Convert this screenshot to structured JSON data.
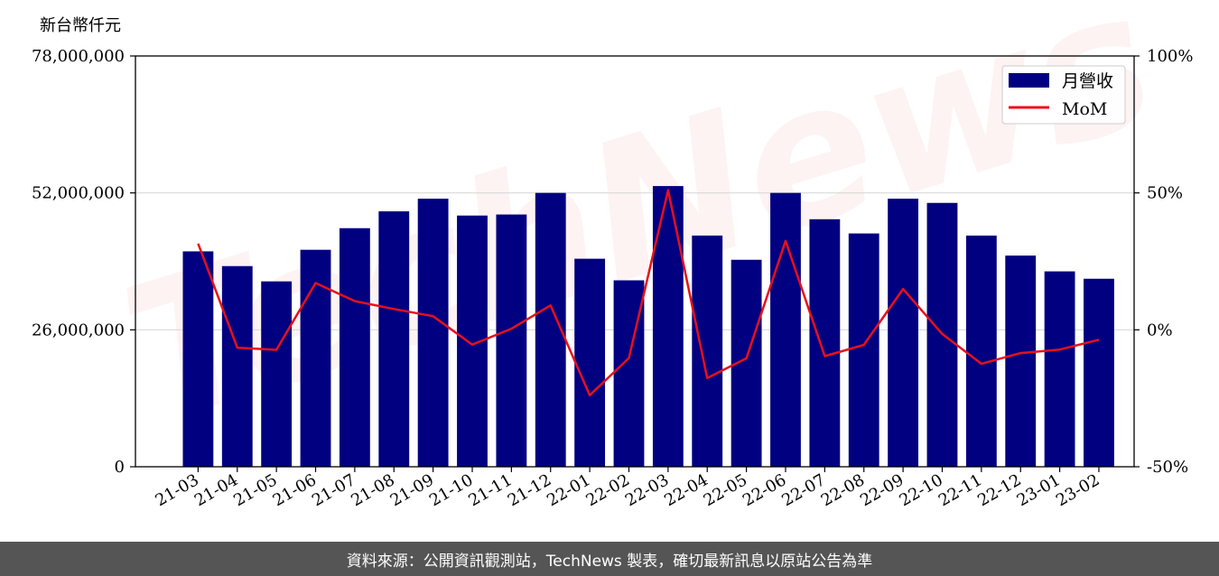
{
  "chart_data": {
    "type": "bar",
    "y_unit_label": "新台幣仟元",
    "categories": [
      "21-03",
      "21-04",
      "21-05",
      "21-06",
      "21-07",
      "21-08",
      "21-09",
      "21-10",
      "21-11",
      "21-12",
      "22-01",
      "22-02",
      "22-03",
      "22-04",
      "22-05",
      "22-06",
      "22-07",
      "22-08",
      "22-09",
      "22-10",
      "22-11",
      "22-12",
      "23-01",
      "23-02"
    ],
    "series": [
      {
        "name": "月營收",
        "type": "bar",
        "axis": "left",
        "color": "#000080",
        "values": [
          40900000,
          38100000,
          35200000,
          41200000,
          45300000,
          48500000,
          50900000,
          47700000,
          47900000,
          52000000,
          39500000,
          35400000,
          53300000,
          43900000,
          39300000,
          52000000,
          47000000,
          44300000,
          50900000,
          50100000,
          43900000,
          40100000,
          37100000,
          35700000
        ]
      },
      {
        "name": "MoM",
        "type": "line",
        "axis": "right",
        "color": "#e8101a",
        "values": [
          31.5,
          -6.5,
          -7.3,
          17.1,
          10.5,
          7.6,
          5.0,
          -5.4,
          0.4,
          8.9,
          -23.9,
          -10.3,
          51.0,
          -17.6,
          -10.4,
          32.5,
          -9.6,
          -5.5,
          14.9,
          -1.5,
          -12.4,
          -8.5,
          -7.2,
          -3.6
        ]
      }
    ],
    "y_left": {
      "lim": [
        0,
        78000000
      ],
      "ticks": [
        0,
        26000000,
        52000000,
        78000000
      ],
      "tick_labels": [
        "0",
        "26,000,000",
        "52,000,000",
        "78,000,000"
      ]
    },
    "y_right": {
      "lim": [
        -50,
        100
      ],
      "ticks": [
        -50,
        0,
        50,
        100
      ],
      "tick_labels": [
        "-50%",
        "0%",
        "50%",
        "100%"
      ]
    },
    "grid": "horizontal",
    "legend_position": "top-right"
  },
  "watermark": "TechNews",
  "footer": {
    "text": "資料來源：公開資訊觀測站，TechNews 製表，確切最新訊息以原站公告為準"
  }
}
